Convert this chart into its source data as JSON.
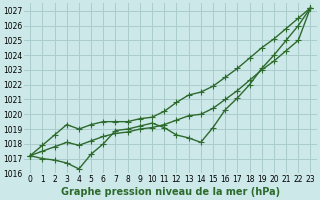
{
  "xlabel": "Graphe pression niveau de la mer (hPa)",
  "hours": [
    0,
    1,
    2,
    3,
    4,
    5,
    6,
    7,
    8,
    9,
    10,
    11,
    12,
    13,
    14,
    15,
    16,
    17,
    18,
    19,
    20,
    21,
    22,
    23
  ],
  "line_main": [
    1017.2,
    1017.0,
    1016.9,
    1016.7,
    1016.3,
    1017.3,
    1018.0,
    1018.9,
    1019.0,
    1019.2,
    1019.4,
    1019.1,
    1018.6,
    1018.4,
    1018.1,
    1019.1,
    1020.3,
    1021.1,
    1022.0,
    1023.1,
    1024.0,
    1025.0,
    1026.0,
    1027.2
  ],
  "line_upper": [
    1017.2,
    1017.9,
    1018.6,
    1019.3,
    1019.0,
    1019.3,
    1019.5,
    1019.5,
    1019.5,
    1019.7,
    1019.8,
    1020.2,
    1020.8,
    1021.3,
    1021.5,
    1021.9,
    1022.5,
    1023.1,
    1023.8,
    1024.5,
    1025.1,
    1025.8,
    1026.5,
    1027.2
  ],
  "line_lower": [
    1017.2,
    1017.5,
    1017.8,
    1018.1,
    1017.9,
    1018.2,
    1018.5,
    1018.7,
    1018.8,
    1019.0,
    1019.1,
    1019.3,
    1019.6,
    1019.9,
    1020.0,
    1020.4,
    1021.0,
    1021.6,
    1022.3,
    1023.0,
    1023.6,
    1024.3,
    1025.0,
    1027.2
  ],
  "ylim_min": 1016.0,
  "ylim_max": 1027.5,
  "yticks": [
    1016,
    1017,
    1018,
    1019,
    1020,
    1021,
    1022,
    1023,
    1024,
    1025,
    1026,
    1027
  ],
  "bg_color": "#cce8e8",
  "grid_color": "#aacccc",
  "line_color": "#2d6a2d",
  "marker": "+",
  "markersize": 4,
  "linewidth": 1.0,
  "label_fontsize": 7,
  "tick_fontsize": 5.5
}
